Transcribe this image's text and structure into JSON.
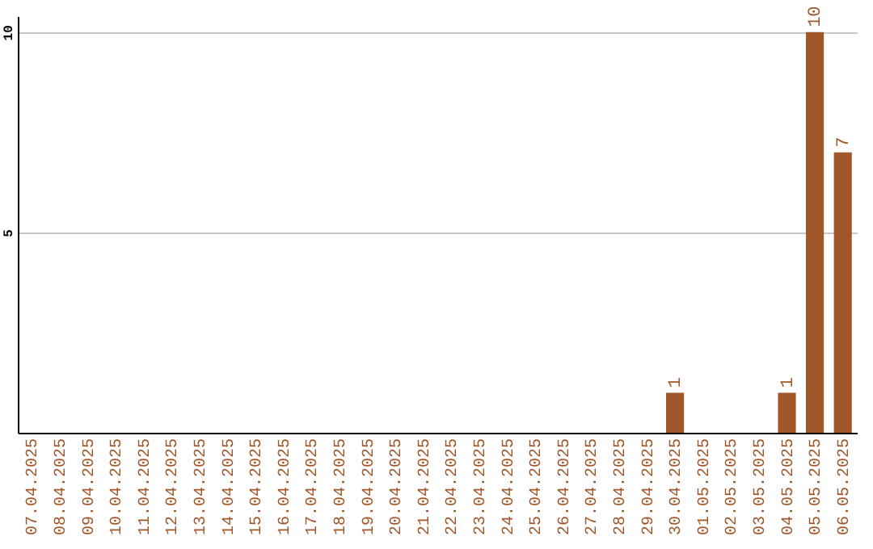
{
  "chart_data": {
    "type": "bar",
    "categories": [
      "07.04.2025",
      "08.04.2025",
      "09.04.2025",
      "10.04.2025",
      "11.04.2025",
      "12.04.2025",
      "13.04.2025",
      "14.04.2025",
      "15.04.2025",
      "16.04.2025",
      "17.04.2025",
      "18.04.2025",
      "19.04.2025",
      "20.04.2025",
      "21.04.2025",
      "22.04.2025",
      "23.04.2025",
      "24.04.2025",
      "25.04.2025",
      "26.04.2025",
      "27.04.2025",
      "28.04.2025",
      "29.04.2025",
      "30.04.2025",
      "01.05.2025",
      "02.05.2025",
      "03.05.2025",
      "04.05.2025",
      "05.05.2025",
      "06.05.2025"
    ],
    "values": [
      0,
      0,
      0,
      0,
      0,
      0,
      0,
      0,
      0,
      0,
      0,
      0,
      0,
      0,
      0,
      0,
      0,
      0,
      0,
      0,
      0,
      0,
      0,
      1,
      0,
      0,
      0,
      1,
      10,
      7
    ],
    "value_labels": [
      null,
      null,
      null,
      null,
      null,
      null,
      null,
      null,
      null,
      null,
      null,
      null,
      null,
      null,
      null,
      null,
      null,
      null,
      null,
      null,
      null,
      null,
      null,
      "1",
      null,
      null,
      null,
      "1",
      "10",
      "7"
    ],
    "color": "#a0572a",
    "ylim": [
      0,
      10.4
    ],
    "yticks": [
      5,
      10
    ],
    "grid": "y"
  }
}
